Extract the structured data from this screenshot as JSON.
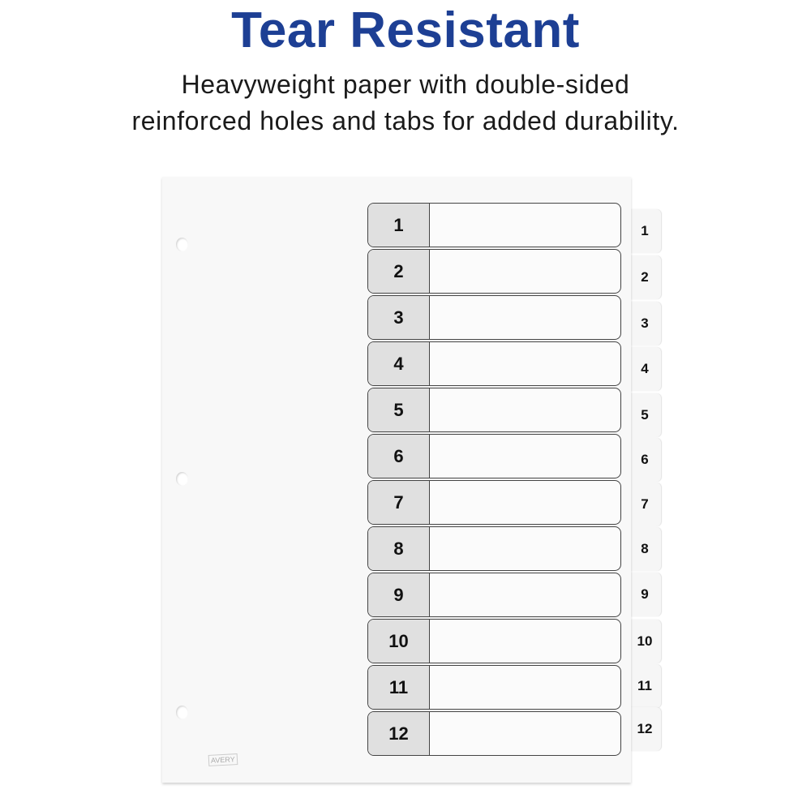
{
  "header": {
    "title": "Tear Resistant",
    "subtitle_lines": [
      "Heavyweight paper with double-sided",
      "reinforced holes and tabs for added durability."
    ]
  },
  "colors": {
    "title": "#1d3f94"
  },
  "divider": {
    "rows": [
      "1",
      "2",
      "3",
      "4",
      "5",
      "6",
      "7",
      "8",
      "9",
      "10",
      "11",
      "12"
    ],
    "tabs": [
      "1",
      "2",
      "3",
      "4",
      "5",
      "6",
      "7",
      "8",
      "9",
      "10",
      "11",
      "12"
    ],
    "logo": "AVERY"
  }
}
